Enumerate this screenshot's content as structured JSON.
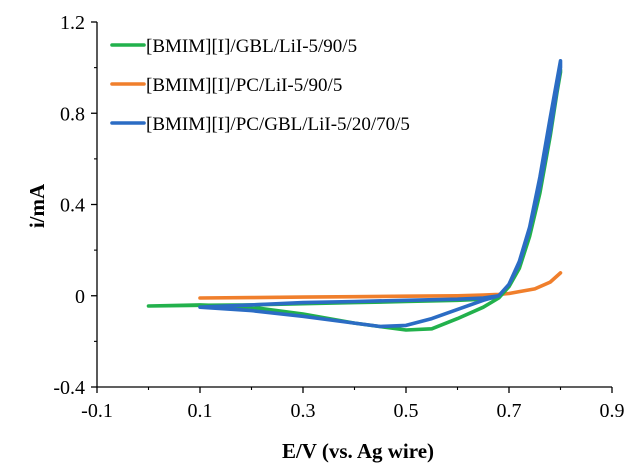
{
  "chart_data": {
    "type": "line",
    "title": "",
    "xlabel": "E/V (vs. Ag wire)",
    "ylabel": "i/mA",
    "xlim": [
      -0.1,
      0.9
    ],
    "ylim": [
      -0.4,
      1.2
    ],
    "x_ticks": [
      -0.1,
      0.1,
      0.3,
      0.5,
      0.7,
      0.9
    ],
    "x_tick_labels": [
      "-0.1",
      "0.1",
      "0.3",
      "0.5",
      "0.7",
      "0.9"
    ],
    "y_ticks": [
      -0.4,
      0,
      0.4,
      0.8,
      1.2
    ],
    "y_tick_labels": [
      "-0.4",
      "0",
      "0.4",
      "0.8",
      "1.2"
    ],
    "grid": false,
    "legend_position": "top-left",
    "series": [
      {
        "name": "[BMIM][I]/GBL/LiI-5/90/5",
        "color": "#22b14c",
        "x": [
          0.0,
          0.1,
          0.2,
          0.3,
          0.4,
          0.5,
          0.55,
          0.6,
          0.65,
          0.68,
          0.7,
          0.72,
          0.74,
          0.76,
          0.78,
          0.8,
          0.8,
          0.78,
          0.76,
          0.74,
          0.72,
          0.7,
          0.68,
          0.65,
          0.6,
          0.5,
          0.4,
          0.3,
          0.2,
          0.1,
          0.0
        ],
        "y": [
          -0.045,
          -0.04,
          -0.05,
          -0.08,
          -0.12,
          -0.15,
          -0.145,
          -0.1,
          -0.05,
          -0.01,
          0.04,
          0.13,
          0.28,
          0.48,
          0.72,
          0.98,
          0.99,
          0.7,
          0.45,
          0.26,
          0.12,
          0.04,
          -0.005,
          -0.015,
          -0.02,
          -0.025,
          -0.03,
          -0.035,
          -0.04,
          -0.042,
          -0.045
        ]
      },
      {
        "name": "[BMIM][I]/PC/LiI-5/90/5",
        "color": "#f07f2c",
        "x": [
          0.1,
          0.2,
          0.3,
          0.4,
          0.5,
          0.6,
          0.65,
          0.68,
          0.7,
          0.72,
          0.75,
          0.78,
          0.8
        ],
        "y": [
          -0.01,
          -0.008,
          -0.006,
          -0.004,
          -0.002,
          0.0,
          0.003,
          0.006,
          0.01,
          0.018,
          0.03,
          0.06,
          0.1
        ]
      },
      {
        "name": "[BMIM][I]/PC/GBL/LiI-5/20/70/5",
        "color": "#2b6cc4",
        "x": [
          0.1,
          0.2,
          0.3,
          0.4,
          0.45,
          0.5,
          0.55,
          0.6,
          0.65,
          0.68,
          0.7,
          0.72,
          0.74,
          0.76,
          0.78,
          0.8,
          0.8,
          0.78,
          0.76,
          0.74,
          0.72,
          0.7,
          0.68,
          0.65,
          0.6,
          0.5,
          0.4,
          0.3,
          0.2,
          0.1
        ],
        "y": [
          -0.05,
          -0.065,
          -0.09,
          -0.12,
          -0.135,
          -0.13,
          -0.1,
          -0.06,
          -0.02,
          0.0,
          0.05,
          0.15,
          0.3,
          0.52,
          0.78,
          1.03,
          1.0,
          0.72,
          0.48,
          0.29,
          0.14,
          0.05,
          0.0,
          -0.01,
          -0.015,
          -0.02,
          -0.025,
          -0.03,
          -0.04,
          -0.05
        ]
      }
    ]
  }
}
